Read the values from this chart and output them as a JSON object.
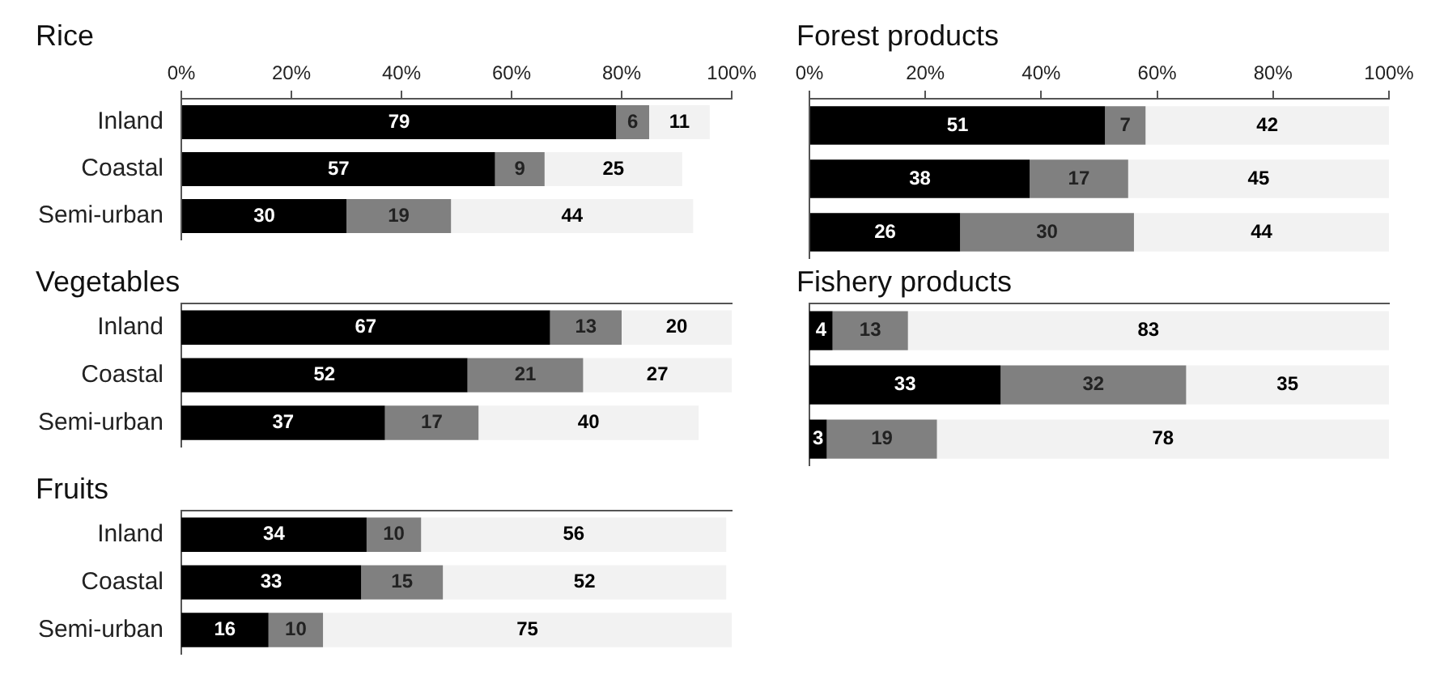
{
  "chart_data": [
    {
      "type": "bar",
      "orientation": "horizontal",
      "stacked": true,
      "data_labels": true,
      "title": "Rice",
      "categories": [
        "Inland",
        "Coastal",
        "Semi-urban"
      ],
      "xlim": [
        0,
        100
      ],
      "xticks": [
        {
          "value": 0,
          "label": "0%"
        },
        {
          "value": 20,
          "label": "20%"
        },
        {
          "value": 40,
          "label": "40%"
        },
        {
          "value": 60,
          "label": "60%"
        },
        {
          "value": 80,
          "label": "80%"
        },
        {
          "value": 100,
          "label": "100%"
        }
      ],
      "series": [
        {
          "color": "#000000",
          "values": [
            79,
            57,
            30
          ]
        },
        {
          "color": "#808080",
          "values": [
            6,
            9,
            19
          ]
        },
        {
          "color": "#f2f2f2",
          "values": [
            11,
            25,
            44
          ]
        }
      ]
    },
    {
      "type": "bar",
      "orientation": "horizontal",
      "stacked": true,
      "data_labels": true,
      "tick_labels": "y",
      "title": "Vegetables",
      "categories": [
        "Inland",
        "Coastal",
        "Semi-urban"
      ],
      "xlim": [
        0,
        100
      ],
      "series": [
        {
          "color": "#000000",
          "values": [
            67,
            52,
            37
          ]
        },
        {
          "color": "#808080",
          "values": [
            13,
            21,
            17
          ]
        },
        {
          "color": "#f2f2f2",
          "values": [
            20,
            27,
            40
          ]
        }
      ]
    },
    {
      "type": "bar",
      "orientation": "horizontal",
      "stacked": true,
      "data_labels": true,
      "tick_labels": "y",
      "title": "Fruits",
      "categories": [
        "Inland",
        "Coastal",
        "Semi-urban"
      ],
      "xlim": [
        0,
        101
      ],
      "series": [
        {
          "color": "#000000",
          "values": [
            34,
            33,
            16
          ]
        },
        {
          "color": "#808080",
          "values": [
            10,
            15,
            10
          ]
        },
        {
          "color": "#f2f2f2",
          "values": [
            56,
            52,
            75
          ]
        }
      ]
    },
    {
      "type": "bar",
      "orientation": "horizontal",
      "stacked": true,
      "data_labels": true,
      "tick_labels": "x",
      "title": "Forest products",
      "categories": [
        null,
        null,
        null
      ],
      "xlim": [
        0,
        100
      ],
      "xticks": [
        {
          "value": 0,
          "label": "0%"
        },
        {
          "value": 20,
          "label": "20%"
        },
        {
          "value": 40,
          "label": "40%"
        },
        {
          "value": 60,
          "label": "60%"
        },
        {
          "value": 80,
          "label": "80%"
        },
        {
          "value": 100,
          "label": "100%"
        }
      ],
      "series": [
        {
          "color": "#000000",
          "values": [
            51,
            38,
            26
          ]
        },
        {
          "color": "#808080",
          "values": [
            7,
            17,
            30
          ]
        },
        {
          "color": "#f2f2f2",
          "values": [
            42,
            45,
            44
          ]
        }
      ]
    },
    {
      "type": "bar",
      "orientation": "horizontal",
      "stacked": true,
      "data_labels": true,
      "tick_labels": false,
      "title": "Fishery products",
      "categories": [
        null,
        null,
        null
      ],
      "xlim": [
        0,
        100
      ],
      "series": [
        {
          "color": "#000000",
          "values": [
            4,
            33,
            3
          ]
        },
        {
          "color": "#808080",
          "values": [
            13,
            32,
            19
          ]
        },
        {
          "color": "#f2f2f2",
          "values": [
            83,
            35,
            78
          ]
        }
      ]
    }
  ]
}
